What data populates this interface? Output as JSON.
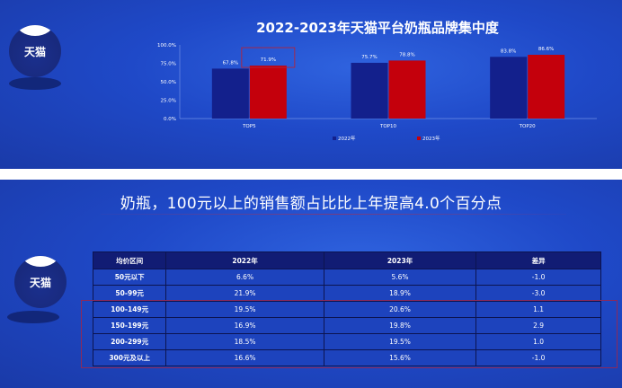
{
  "brand": {
    "name": "天猫"
  },
  "top_panel": {
    "title": "2022-2023年天猫平台奶瓶品牌集中度"
  },
  "chart_data": {
    "type": "bar",
    "title": "2022-2023年天猫平台奶瓶品牌集中度",
    "categories": [
      "TOP5",
      "TOP10",
      "TOP20"
    ],
    "series": [
      {
        "name": "2022年",
        "values": [
          67.8,
          75.7,
          83.8
        ],
        "labels": [
          "67.8%",
          "75.7%",
          "83.8%"
        ],
        "color": "#13208c"
      },
      {
        "name": "2023年",
        "values": [
          71.9,
          78.8,
          86.6
        ],
        "labels": [
          "71.9%",
          "78.8%",
          "86.6%"
        ],
        "color": "#c4000c"
      }
    ],
    "ylim": [
      0,
      100
    ],
    "yticks": [
      0,
      25,
      50,
      75,
      100
    ],
    "ytick_labels": [
      "0.0%",
      "25.0%",
      "50.0%",
      "75.0%",
      "100.0%"
    ],
    "grid": false,
    "legend": "bottom-center",
    "highlighted_label": "71.9%"
  },
  "bottom_panel": {
    "headline": "奶瓶，100元以上的销售额占比比上年提高4.0个百分点",
    "table": {
      "headers": [
        "均价区间",
        "2022年",
        "2023年",
        "差异"
      ],
      "rows": [
        [
          "50元以下",
          "6.6%",
          "5.6%",
          "-1.0"
        ],
        [
          "50-99元",
          "21.9%",
          "18.9%",
          "-3.0"
        ],
        [
          "100-149元",
          "19.5%",
          "20.6%",
          "1.1"
        ],
        [
          "150-199元",
          "16.9%",
          "19.8%",
          "2.9"
        ],
        [
          "200-299元",
          "18.5%",
          "19.5%",
          "1.0"
        ],
        [
          "300元及以上",
          "16.6%",
          "15.6%",
          "-1.0"
        ]
      ],
      "highlighted_rows": [
        "100-149元",
        "150-199元",
        "200-299元",
        "300元及以上"
      ]
    }
  }
}
